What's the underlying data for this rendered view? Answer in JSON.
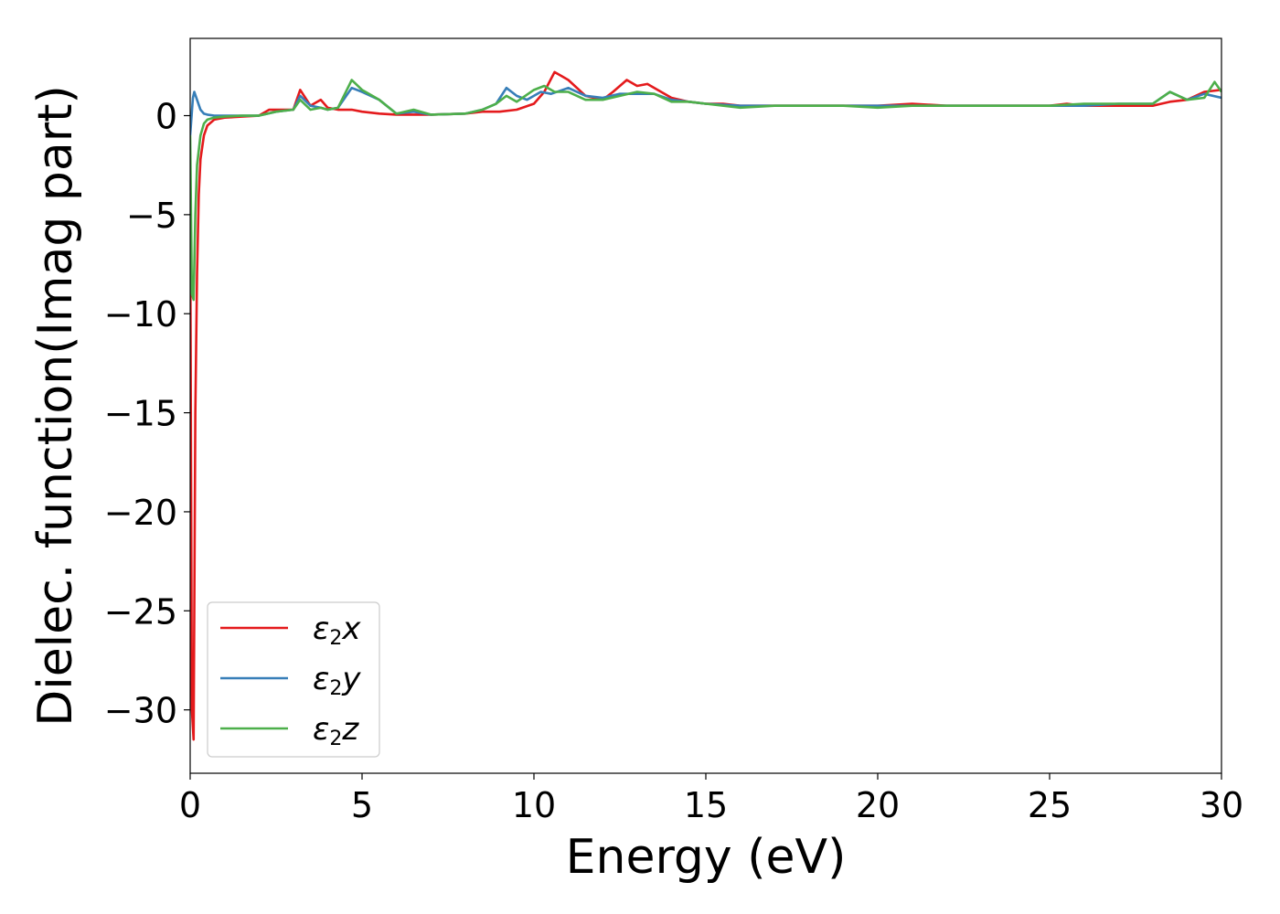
{
  "chart_data": {
    "type": "line",
    "title": "",
    "xlabel": "Energy (eV)",
    "ylabel": "Dielec. function(Imag part)",
    "xlim": [
      0,
      30
    ],
    "ylim": [
      -33.2,
      3.9
    ],
    "xticks": [
      0,
      5,
      10,
      15,
      20,
      25,
      30
    ],
    "yticks": [
      0,
      -5,
      -10,
      -15,
      -20,
      -25,
      -30
    ],
    "xtick_labels": [
      "0",
      "5",
      "10",
      "15",
      "20",
      "25",
      "30"
    ],
    "ytick_labels": [
      "0",
      "−5",
      "−10",
      "−15",
      "−20",
      "−25",
      "−30"
    ],
    "grid": false,
    "legend_position": "lower-left",
    "series": [
      {
        "name": "ε2x",
        "legend_base": "ε",
        "legend_sub": "2",
        "legend_tail": "x",
        "color": "#e41a1c",
        "x": [
          0,
          0.05,
          0.1,
          0.12,
          0.15,
          0.2,
          0.25,
          0.3,
          0.4,
          0.5,
          0.7,
          1,
          1.5,
          2,
          2.3,
          2.5,
          3,
          3.2,
          3.5,
          3.8,
          4,
          4.3,
          4.7,
          5,
          5.5,
          6,
          7,
          8,
          8.5,
          9,
          9.5,
          10,
          10.3,
          10.6,
          10.8,
          11,
          11.5,
          12,
          12.3,
          12.7,
          13,
          13.3,
          13.6,
          14,
          14.5,
          15,
          15.5,
          16,
          17,
          18,
          19,
          20,
          21,
          22,
          23,
          24,
          25,
          25.5,
          26,
          27,
          28,
          28.5,
          29,
          29.5,
          30
        ],
        "y": [
          -5,
          -30,
          -31.5,
          -25,
          -15,
          -8,
          -4,
          -2.2,
          -1,
          -0.5,
          -0.2,
          -0.1,
          -0.05,
          0,
          0.3,
          0.3,
          0.3,
          1.3,
          0.5,
          0.8,
          0.4,
          0.3,
          0.3,
          0.2,
          0.1,
          0.05,
          0.05,
          0.1,
          0.2,
          0.2,
          0.3,
          0.6,
          1.2,
          2.2,
          2,
          1.8,
          1,
          0.8,
          1.2,
          1.8,
          1.5,
          1.6,
          1.3,
          0.9,
          0.7,
          0.6,
          0.6,
          0.5,
          0.5,
          0.5,
          0.5,
          0.5,
          0.6,
          0.5,
          0.5,
          0.5,
          0.5,
          0.6,
          0.5,
          0.5,
          0.5,
          0.7,
          0.8,
          1.2,
          1.3
        ]
      },
      {
        "name": "ε2y",
        "legend_base": "ε",
        "legend_sub": "2",
        "legend_tail": "y",
        "color": "#377eb8",
        "x": [
          0,
          0.05,
          0.08,
          0.12,
          0.2,
          0.3,
          0.4,
          0.5,
          0.7,
          1,
          1.5,
          2,
          2.5,
          3,
          3.2,
          3.5,
          3.8,
          4,
          4.3,
          4.7,
          5,
          5.5,
          6,
          6.5,
          7,
          8,
          8.5,
          8.9,
          9.2,
          9.5,
          9.8,
          10.2,
          10.5,
          11,
          11.5,
          12,
          12.5,
          13,
          13.5,
          14,
          14.5,
          15,
          16,
          17,
          18,
          19,
          20,
          21,
          22,
          23,
          24,
          25,
          26,
          27,
          28,
          28.5,
          29,
          29.5,
          30
        ],
        "y": [
          -1,
          0.2,
          0.9,
          1.2,
          0.8,
          0.3,
          0.1,
          0.05,
          0,
          0,
          0,
          0,
          0.2,
          0.3,
          1,
          0.5,
          0.4,
          0.3,
          0.4,
          1.4,
          1.2,
          0.8,
          0.1,
          0.2,
          0.05,
          0.1,
          0.3,
          0.6,
          1.4,
          1,
          0.8,
          1.2,
          1.1,
          1.4,
          1,
          0.9,
          1.1,
          1.1,
          1.1,
          0.8,
          0.7,
          0.6,
          0.5,
          0.5,
          0.5,
          0.5,
          0.5,
          0.5,
          0.5,
          0.5,
          0.5,
          0.5,
          0.5,
          0.6,
          0.6,
          1.2,
          0.8,
          1.1,
          0.9
        ]
      },
      {
        "name": "ε2z",
        "legend_base": "ε",
        "legend_sub": "2",
        "legend_tail": "z",
        "color": "#4daf4a",
        "x": [
          0,
          0.05,
          0.1,
          0.15,
          0.2,
          0.3,
          0.4,
          0.5,
          0.7,
          1,
          1.5,
          2,
          2.5,
          3,
          3.2,
          3.5,
          3.8,
          4,
          4.3,
          4.7,
          5,
          5.5,
          6,
          6.5,
          7,
          8,
          8.5,
          8.9,
          9.2,
          9.5,
          10,
          10.3,
          10.6,
          11,
          11.5,
          12,
          12.5,
          13,
          13.5,
          14,
          14.5,
          15,
          16,
          17,
          18,
          19,
          20,
          21,
          22,
          23,
          24,
          25,
          26,
          27,
          28,
          28.5,
          29,
          29.5,
          29.8,
          30
        ],
        "y": [
          -1,
          -9,
          -9.3,
          -5,
          -2.5,
          -1,
          -0.4,
          -0.2,
          -0.1,
          -0.05,
          0,
          0,
          0.2,
          0.3,
          0.8,
          0.3,
          0.4,
          0.3,
          0.4,
          1.8,
          1.3,
          0.8,
          0.1,
          0.3,
          0.05,
          0.1,
          0.3,
          0.6,
          1,
          0.7,
          1.3,
          1.5,
          1.2,
          1.2,
          0.8,
          0.8,
          1,
          1.2,
          1.1,
          0.7,
          0.7,
          0.6,
          0.4,
          0.5,
          0.5,
          0.5,
          0.4,
          0.5,
          0.5,
          0.5,
          0.5,
          0.5,
          0.6,
          0.6,
          0.6,
          1.2,
          0.8,
          0.9,
          1.7,
          1.2
        ]
      }
    ]
  }
}
